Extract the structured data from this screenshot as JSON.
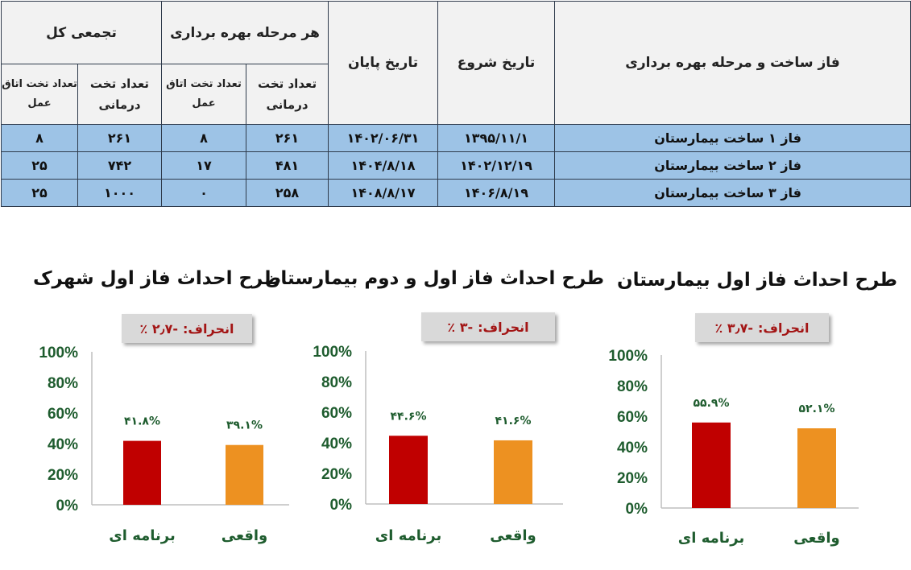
{
  "table": {
    "headers": {
      "phase": "فاز ساخت و مرحله بهره برداری",
      "start_date": "تاریخ شروع",
      "end_date": "تاریخ پایان",
      "per_stage": "هر مرحله بهره برداری",
      "cumulative": "تجمعی کل",
      "beds": "تعداد تخت درمانی",
      "or_beds": "تعداد تخت اتاق عمل"
    },
    "rows": [
      {
        "phase": "فاز ۱ ساخت بیمارستان",
        "start": "۱۳۹۵/۱۱/۱",
        "end": "۱۴۰۲/۰۶/۳۱",
        "stage_beds": "۲۶۱",
        "stage_or": "۸",
        "total_beds": "۲۶۱",
        "total_or": "۸"
      },
      {
        "phase": "فاز ۲ ساخت بیمارستان",
        "start": "۱۴۰۲/۱۲/۱۹",
        "end": "۱۴۰۴/۸/۱۸",
        "stage_beds": "۴۸۱",
        "stage_or": "۱۷",
        "total_beds": "۷۴۲",
        "total_or": "۲۵"
      },
      {
        "phase": "فاز ۳ ساخت بیمارستان",
        "start": "۱۴۰۶/۸/۱۹",
        "end": "۱۴۰۸/۸/۱۷",
        "stage_beds": "۲۵۸",
        "stage_or": "۰",
        "total_beds": "۱۰۰۰",
        "total_or": "۲۵"
      }
    ]
  },
  "colors": {
    "planned": "#c00000",
    "actual": "#ed9121",
    "row_bg": "#9dc3e6",
    "label_green": "#1e5c2e",
    "deviation_red": "#a31515"
  },
  "chart_data": [
    {
      "type": "bar",
      "title": "طرح احداث فاز اول شهرک",
      "deviation_label": "انحراف:",
      "deviation_value": "-۲٫۷ ٪",
      "categories": [
        "برنامه ای",
        "واقعی"
      ],
      "values": [
        41.8,
        39.1
      ],
      "value_labels": [
        "۴۱.۸%",
        "۳۹.۱%"
      ],
      "ylim": [
        0,
        100
      ],
      "yticks": [
        "0%",
        "20%",
        "40%",
        "60%",
        "80%",
        "100%"
      ]
    },
    {
      "type": "bar",
      "title": "طرح احداث فاز اول و دوم بیمارستان",
      "deviation_label": "انحراف:",
      "deviation_value": "-۳ ٪",
      "categories": [
        "برنامه ای",
        "واقعی"
      ],
      "values": [
        44.6,
        41.6
      ],
      "value_labels": [
        "۴۴.۶%",
        "۴۱.۶%"
      ],
      "ylim": [
        0,
        100
      ],
      "yticks": [
        "0%",
        "20%",
        "40%",
        "60%",
        "80%",
        "100%"
      ]
    },
    {
      "type": "bar",
      "title": "طرح احداث فاز اول  بیمارستان",
      "deviation_label": "انحراف:",
      "deviation_value": "-۳٫۷ ٪",
      "categories": [
        "برنامه ای",
        "واقعی"
      ],
      "values": [
        55.9,
        52.1
      ],
      "value_labels": [
        "۵۵.۹%",
        "۵۲.۱%"
      ],
      "ylim": [
        0,
        100
      ],
      "yticks": [
        "0%",
        "20%",
        "40%",
        "60%",
        "80%",
        "100%"
      ]
    }
  ]
}
